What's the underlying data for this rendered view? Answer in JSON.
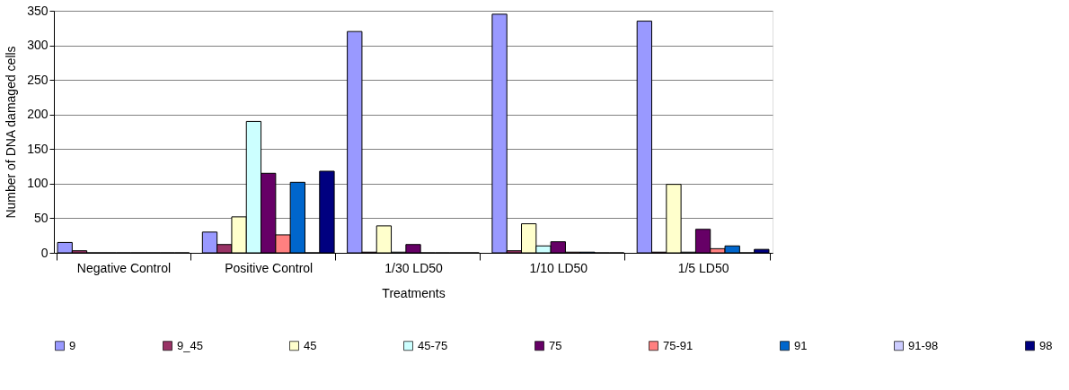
{
  "chart_data": {
    "type": "bar",
    "xlabel": "Treatments",
    "ylabel": "Number of DNA damaged cells",
    "categories": [
      "Negative Control",
      "Positive Control",
      "1/30 LD50",
      "1/10 LD50",
      "1/5 LD50"
    ],
    "ylim": [
      0,
      350
    ],
    "yticks": [
      0,
      50,
      100,
      150,
      200,
      250,
      300,
      350
    ],
    "grid": "y",
    "legend": "bottom",
    "series": [
      {
        "name": "9",
        "color": "#9999ff",
        "values": [
          15,
          30,
          320,
          345,
          335
        ]
      },
      {
        "name": "9_45",
        "color": "#993366",
        "values": [
          3,
          12,
          1,
          3,
          1
        ]
      },
      {
        "name": "45",
        "color": "#ffffcc",
        "values": [
          0,
          52,
          39,
          42,
          99
        ]
      },
      {
        "name": "45-75",
        "color": "#ccffff",
        "values": [
          0,
          190,
          1,
          10,
          1
        ]
      },
      {
        "name": "75",
        "color": "#660066",
        "values": [
          0,
          115,
          12,
          16,
          34
        ]
      },
      {
        "name": "75-91",
        "color": "#ff8080",
        "values": [
          0,
          26,
          0,
          1,
          6
        ]
      },
      {
        "name": "91",
        "color": "#0066cc",
        "values": [
          0,
          102,
          0,
          1,
          10
        ]
      },
      {
        "name": "91-98",
        "color": "#ccccff",
        "values": [
          0,
          0,
          0,
          0,
          0
        ]
      },
      {
        "name": "98",
        "color": "#000080",
        "values": [
          0,
          118,
          0,
          0,
          5
        ]
      }
    ]
  }
}
